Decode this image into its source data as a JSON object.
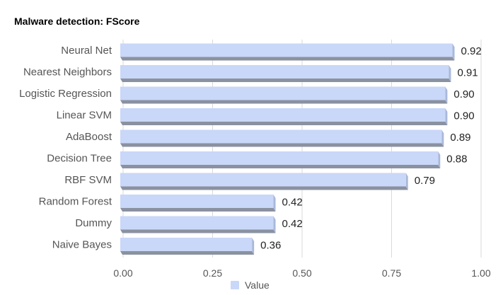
{
  "chart_data": {
    "type": "bar",
    "orientation": "horizontal",
    "title": "Malware detection: FScore",
    "categories": [
      "Neural Net",
      "Nearest Neighbors",
      "Logistic Regression",
      "Linear SVM",
      "AdaBoost",
      "Decision Tree",
      "RBF SVM",
      "Random Forest",
      "Dummy",
      "Naive Bayes"
    ],
    "series": [
      {
        "name": "Value",
        "values": [
          0.92,
          0.91,
          0.9,
          0.9,
          0.89,
          0.88,
          0.79,
          0.42,
          0.42,
          0.36
        ]
      }
    ],
    "value_labels": [
      "0.92",
      "0.91",
      "0.90",
      "0.90",
      "0.89",
      "0.88",
      "0.79",
      "0.42",
      "0.42",
      "0.36"
    ],
    "xlim": [
      0,
      1
    ],
    "xticks": [
      0,
      0.25,
      0.5,
      0.75,
      1
    ],
    "xtick_labels": [
      "0.00",
      "0.25",
      "0.50",
      "0.75",
      "1.00"
    ],
    "xlabel": "",
    "ylabel": "",
    "grid": "vertical",
    "legend": {
      "position": "bottom",
      "label": "Value"
    },
    "colors": {
      "bar_face": "#c9d7f8",
      "bar_side": "#a9b8d9",
      "bar_bottom": "#8a92a1",
      "grid": "#d9d9d9"
    }
  }
}
